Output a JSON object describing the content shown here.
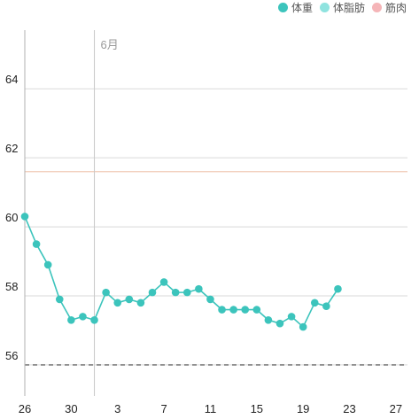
{
  "chart_data": {
    "type": "line",
    "legend": [
      {
        "name": "体重",
        "color": "#3cc4bc"
      },
      {
        "name": "体脂肪",
        "color": "#8fe3df"
      },
      {
        "name": "筋肉",
        "color": "#f5b5b8"
      }
    ],
    "legend_position": "top-right",
    "month_marker": {
      "label": "6月",
      "date": "2024-06-01"
    },
    "x_ticks": [
      {
        "date": "2024-05-26",
        "label": "26"
      },
      {
        "date": "2024-05-30",
        "label": "30"
      },
      {
        "date": "2024-06-03",
        "label": "3"
      },
      {
        "date": "2024-06-07",
        "label": "7"
      },
      {
        "date": "2024-06-11",
        "label": "11"
      },
      {
        "date": "2024-06-15",
        "label": "15"
      },
      {
        "date": "2024-06-19",
        "label": "19"
      },
      {
        "date": "2024-06-23",
        "label": "23"
      },
      {
        "date": "2024-06-27",
        "label": "27"
      }
    ],
    "y_ticks": [
      56,
      58,
      60,
      62,
      64
    ],
    "ylim": [
      55.1,
      65.7
    ],
    "xlim": [
      "2024-05-26",
      "2024-06-28"
    ],
    "grid": true,
    "reference_lines": [
      {
        "value": 56,
        "style": "dashed",
        "color": "#808080"
      },
      {
        "value": 61.6,
        "style": "solid",
        "color": "#f0c9b5"
      }
    ],
    "series": [
      {
        "name": "体重",
        "color": "#3cc4bc",
        "x": [
          "2024-05-26",
          "2024-05-27",
          "2024-05-28",
          "2024-05-29",
          "2024-05-30",
          "2024-05-31",
          "2024-06-01",
          "2024-06-02",
          "2024-06-03",
          "2024-06-04",
          "2024-06-05",
          "2024-06-06",
          "2024-06-07",
          "2024-06-08",
          "2024-06-09",
          "2024-06-10",
          "2024-06-11",
          "2024-06-12",
          "2024-06-13",
          "2024-06-14",
          "2024-06-15",
          "2024-06-16",
          "2024-06-17",
          "2024-06-18",
          "2024-06-19",
          "2024-06-20",
          "2024-06-21",
          "2024-06-22"
        ],
        "values": [
          60.3,
          59.5,
          58.9,
          57.9,
          57.3,
          57.4,
          57.3,
          58.1,
          57.8,
          57.9,
          57.8,
          58.1,
          58.4,
          58.1,
          58.1,
          58.2,
          57.9,
          57.6,
          57.6,
          57.6,
          57.6,
          57.3,
          57.2,
          57.4,
          57.1,
          57.8,
          57.7,
          58.2
        ]
      }
    ]
  }
}
